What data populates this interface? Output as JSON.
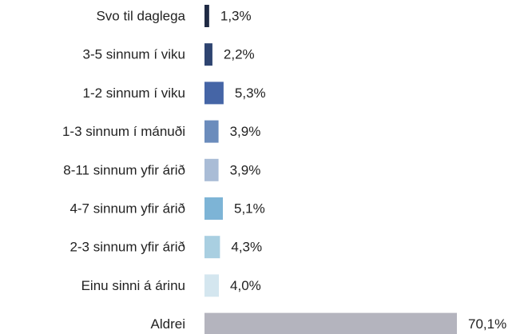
{
  "chart_data": {
    "type": "barh",
    "categories": [
      "Svo til daglega",
      "3-5 sinnum í viku",
      "1-2 sinnum í viku",
      "1-3 sinnum í mánuði",
      "8-11 sinnum yfir árið",
      "4-7 sinnum yfir árið",
      "2-3 sinnum yfir árið",
      "Einu sinni á árinu",
      "Aldrei"
    ],
    "values": [
      1.3,
      2.2,
      5.3,
      3.9,
      3.9,
      5.1,
      4.3,
      4.0,
      70.1
    ],
    "value_labels": [
      "1,3%",
      "2,2%",
      "5,3%",
      "3,9%",
      "3,9%",
      "5,1%",
      "4,3%",
      "4,0%",
      "70,1%"
    ],
    "colors": [
      "#1f2a44",
      "#2e4470",
      "#4565a6",
      "#6b8cbc",
      "#a9bcd6",
      "#7db4d6",
      "#a9cfe1",
      "#d4e6ef",
      "#b4b4be"
    ]
  }
}
